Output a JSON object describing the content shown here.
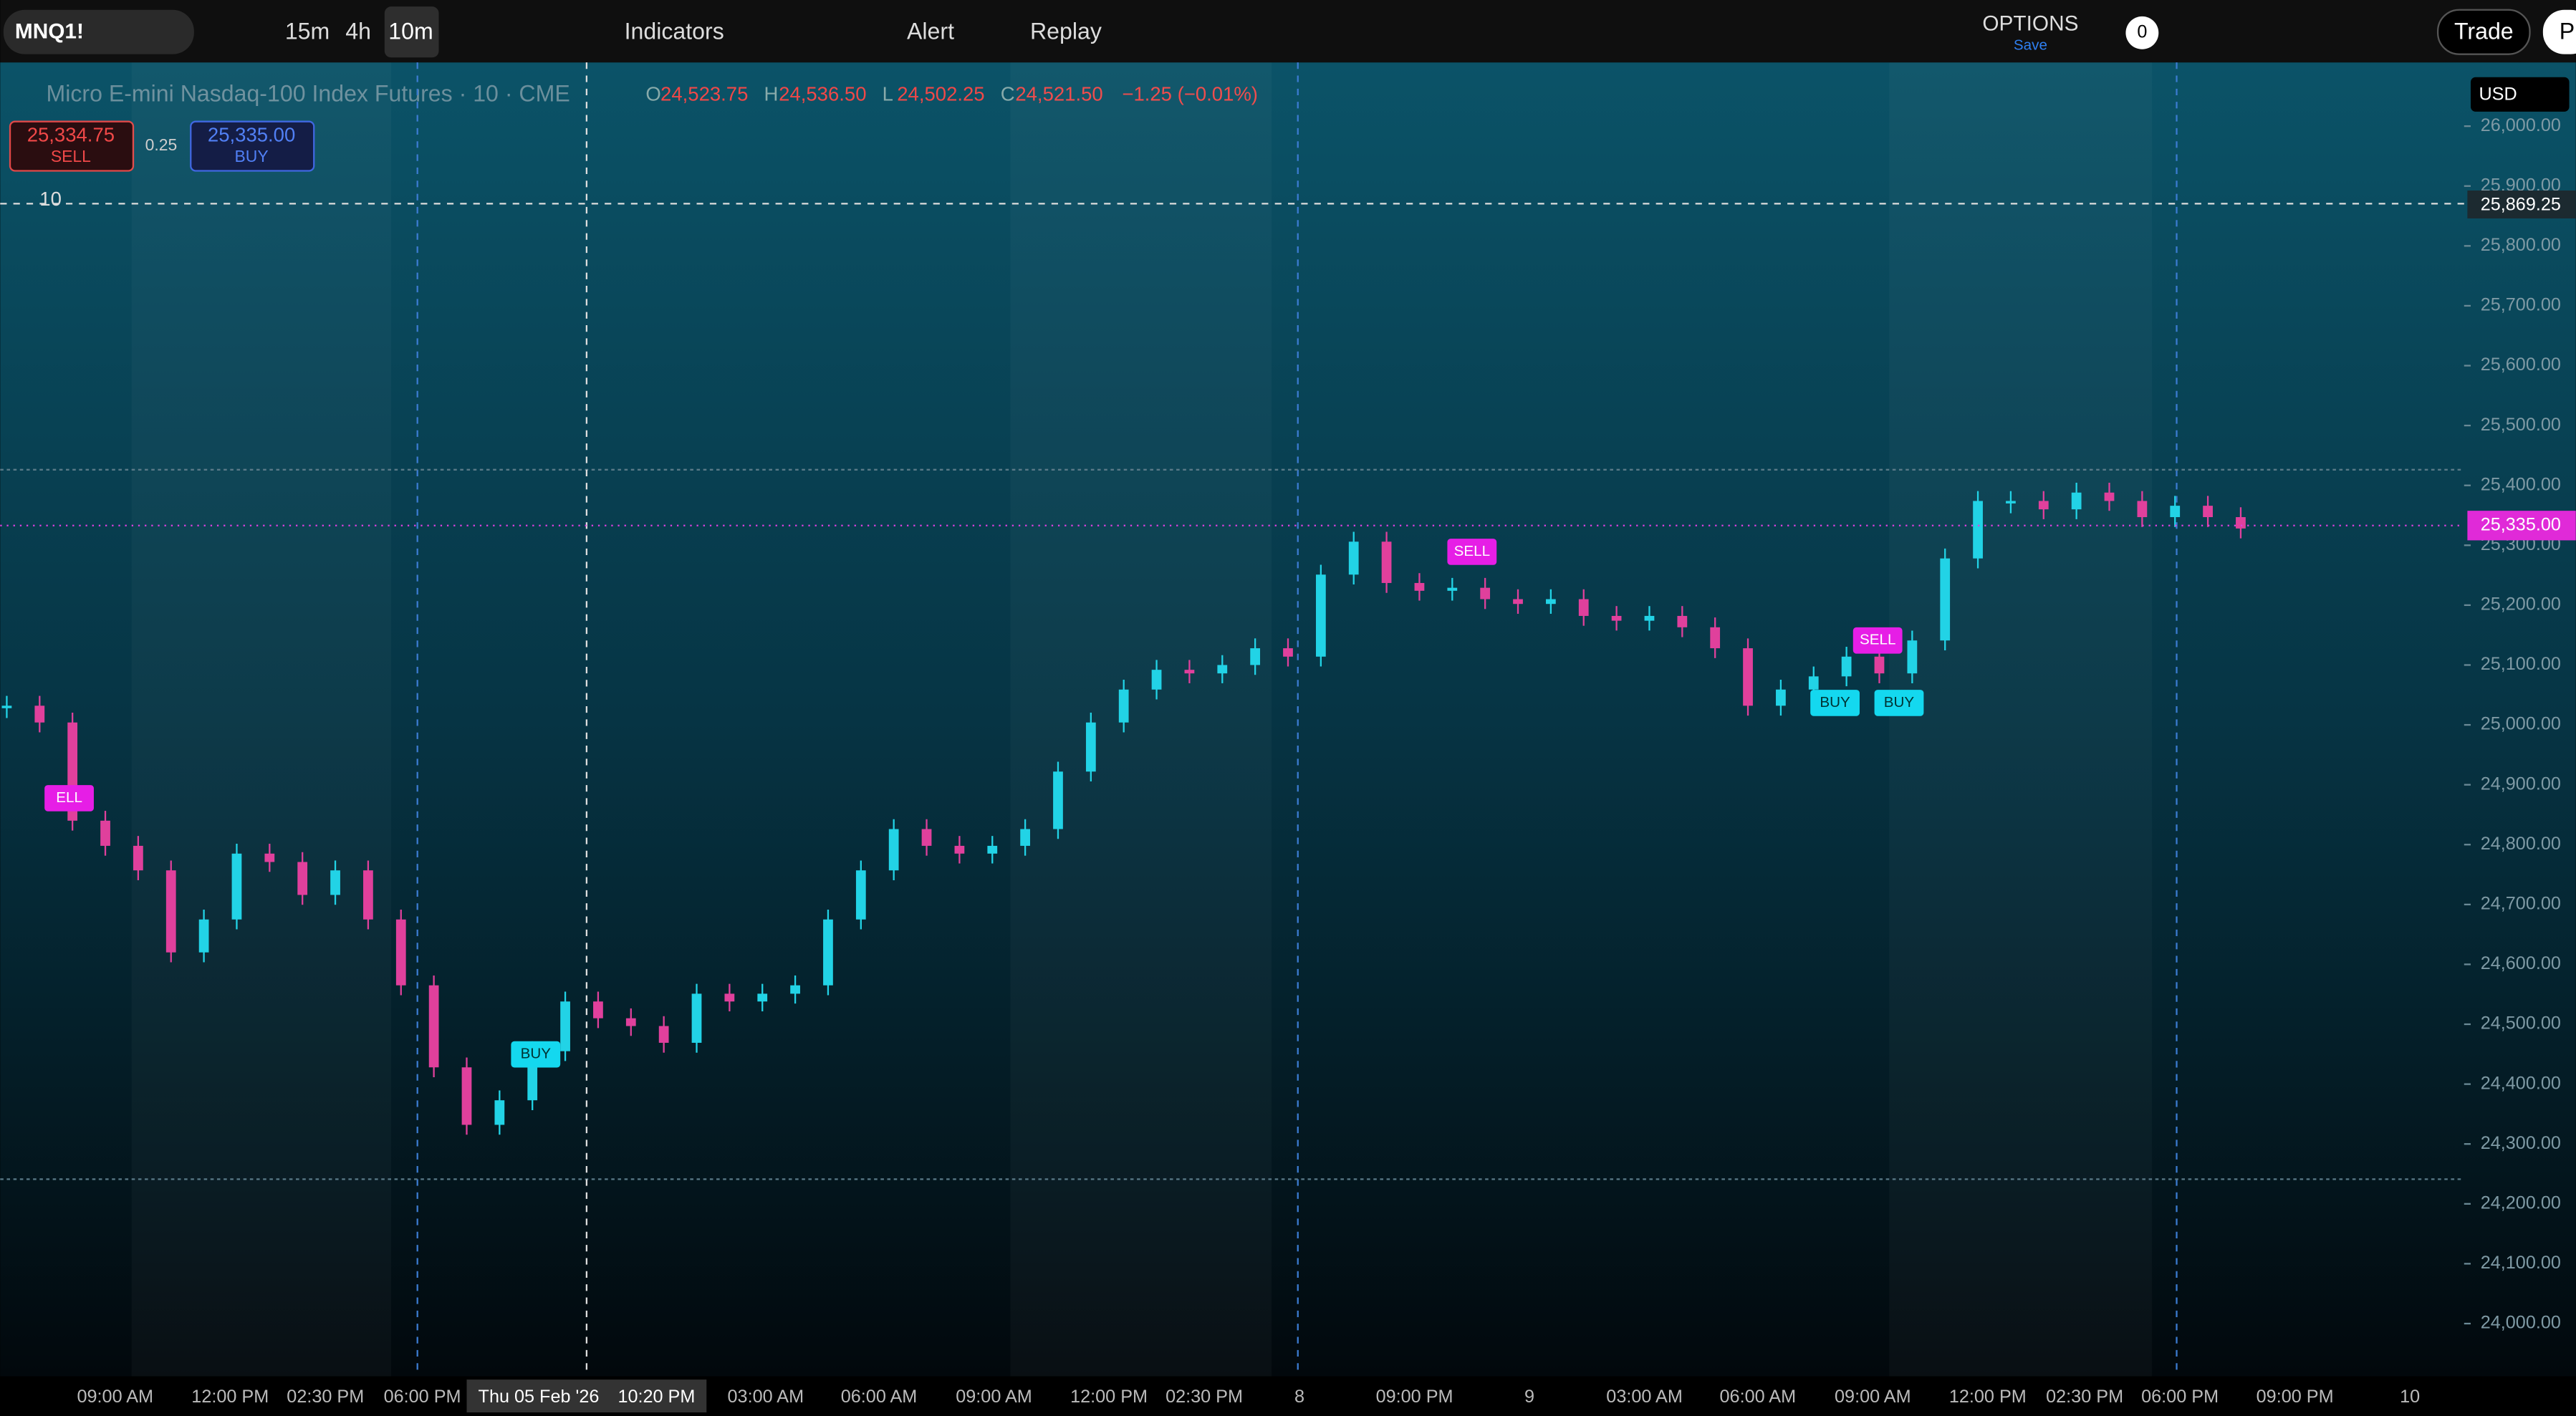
{
  "toolbar": {
    "symbol": "MNQ1!",
    "intervals": [
      "15m",
      "4h",
      "10m"
    ],
    "indicators": "Indicators",
    "alert": "Alert",
    "replay": "Replay",
    "options": "OPTIONS",
    "save": "Save",
    "options_count": "0",
    "trade": "Trade",
    "profile": "P"
  },
  "legend": {
    "title": "Micro E-mini Nasdaq-100 Index Futures · 10 · CME",
    "ohlc": [
      {
        "label": "O",
        "value": "24,523.75"
      },
      {
        "label": "H",
        "value": "24,536.50"
      },
      {
        "label": "L",
        "value": "24,502.25"
      },
      {
        "label": "C",
        "value": "24,521.50"
      }
    ],
    "change": "−1.25 (−0.01%)"
  },
  "trade_panel": {
    "sell_price": "25,334.75",
    "sell": "SELL",
    "spread": "0.25",
    "buy_price": "25,335.00",
    "buy": "BUY"
  },
  "interval_marker": "10",
  "currency": "USD",
  "crosshair": {
    "price": "25,869.25",
    "date": "Thu 05 Feb '26",
    "time": "10:20 PM"
  },
  "last_price": "25,335.00",
  "signals": [
    {
      "label": "ELL",
      "kind": "sell"
    },
    {
      "label": "BUY",
      "kind": "buy"
    },
    {
      "label": "SELL",
      "kind": "sell"
    },
    {
      "label": "SELL",
      "kind": "sell"
    },
    {
      "label": "BUY",
      "kind": "buy"
    },
    {
      "label": "BUY",
      "kind": "buy"
    }
  ],
  "time_labels": [
    "09:00 AM",
    "12:00 PM",
    "02:30 PM",
    "06:00 PM",
    "03:00 AM",
    "06:00 AM",
    "09:00 AM",
    "12:00 PM",
    "02:30 PM",
    "8",
    "09:00 PM",
    "9",
    "03:00 AM",
    "06:00 AM",
    "09:00 AM",
    "12:00 PM",
    "02:30 PM",
    "06:00 PM",
    "09:00 PM",
    "10"
  ],
  "chart_data": {
    "type": "candlestick",
    "up_color": "#22d3e6",
    "down_color": "#e0409c",
    "values": [
      25032,
      25004,
      24840,
      24798,
      24757,
      24620,
      24675,
      24785,
      24771,
      24716,
      24757,
      24675,
      24565,
      24428,
      24332,
      24373,
      24455,
      24538,
      24510,
      24497,
      24469,
      24551,
      24538,
      24551,
      24565,
      24675,
      24757,
      24826,
      24798,
      24785,
      24798,
      24826,
      24922,
      25004,
      25059,
      25092,
      25086,
      25100,
      25128,
      25114,
      25251,
      25306,
      25237,
      25224,
      25229,
      25210,
      25202,
      25210,
      25182,
      25174,
      25182,
      25163,
      25128,
      25032,
      25059,
      25081,
      25114,
      25086,
      25141,
      25278,
      25374,
      25374,
      25360,
      25388,
      25374,
      25347,
      25366,
      25347,
      25328
    ],
    "ylim": [
      23912,
      26101
    ],
    "yticks": [
      {
        "value": 24000,
        "label": "24,000.00"
      },
      {
        "value": 24100,
        "label": "24,100.00"
      },
      {
        "value": 24200,
        "label": "24,200.00"
      },
      {
        "value": 24300,
        "label": "24,300.00"
      },
      {
        "value": 24400,
        "label": "24,400.00"
      },
      {
        "value": 24500,
        "label": "24,500.00"
      },
      {
        "value": 24600,
        "label": "24,600.00"
      },
      {
        "value": 24700,
        "label": "24,700.00"
      },
      {
        "value": 24800,
        "label": "24,800.00"
      },
      {
        "value": 24900,
        "label": "24,900.00"
      },
      {
        "value": 25000,
        "label": "25,000.00"
      },
      {
        "value": 25100,
        "label": "25,100.00"
      },
      {
        "value": 25200,
        "label": "25,200.00"
      },
      {
        "value": 25300,
        "label": "25,300.00"
      },
      {
        "value": 25400,
        "label": "25,400.00"
      },
      {
        "value": 25500,
        "label": "25,500.00"
      },
      {
        "value": 25600,
        "label": "25,600.00"
      },
      {
        "value": 25700,
        "label": "25,700.00"
      },
      {
        "value": 25800,
        "label": "25,800.00"
      },
      {
        "value": 25900,
        "label": "25,900.00"
      },
      {
        "value": 26000,
        "label": "26,000.00"
      }
    ]
  }
}
